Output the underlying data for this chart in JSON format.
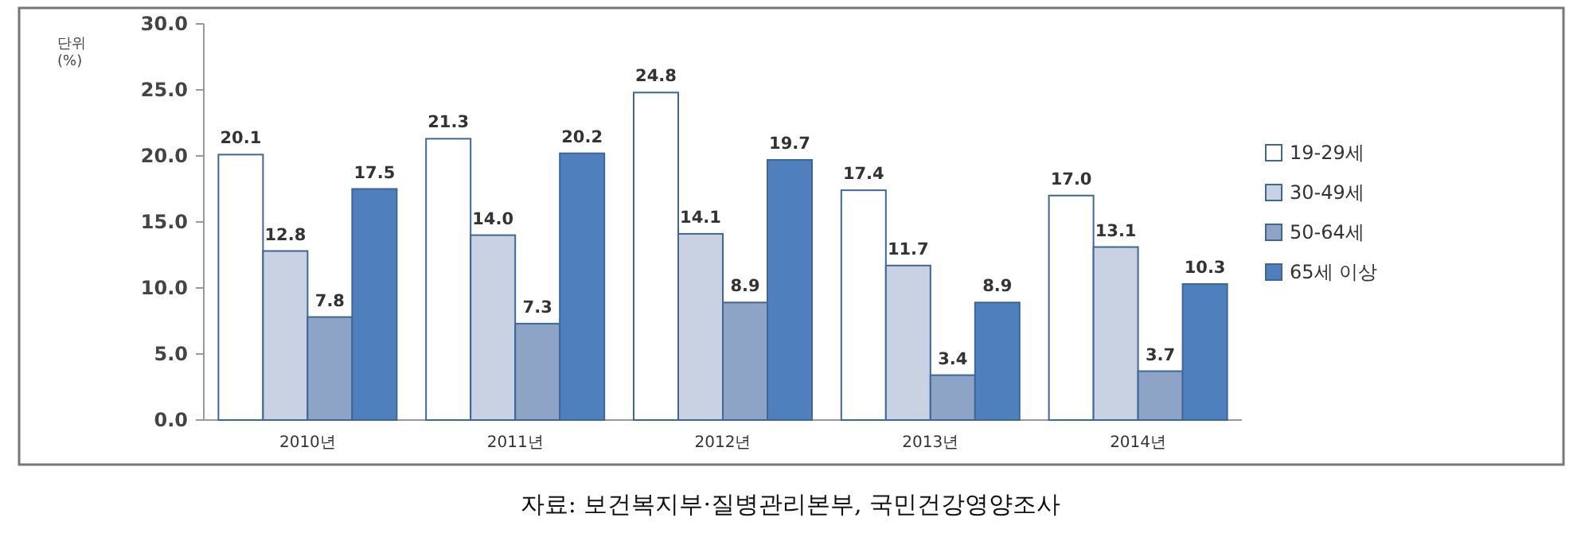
{
  "chart_data": {
    "type": "bar",
    "ylabel": "단위 (%)",
    "categories": [
      "2010년",
      "2011년",
      "2012년",
      "2013년",
      "2014년"
    ],
    "series": [
      {
        "name": "19-29세",
        "color": "#ffffff",
        "values": [
          20.1,
          21.3,
          24.8,
          17.4,
          17.0
        ],
        "value_labels": [
          "20.1",
          "21.3",
          "24.8",
          "17.4",
          "17.0"
        ]
      },
      {
        "name": "30-49세",
        "color": "#c8d2e2",
        "values": [
          12.8,
          14.0,
          14.1,
          11.7,
          13.1
        ],
        "value_labels": [
          "12.8",
          "14.0",
          "14.1",
          "11.7",
          "13.1"
        ]
      },
      {
        "name": "50-64세",
        "color": "#8ea4c6",
        "values": [
          7.8,
          7.3,
          8.9,
          3.4,
          3.7
        ],
        "value_labels": [
          "7.8",
          "7.3",
          "8.9",
          "3.4",
          "3.7"
        ]
      },
      {
        "name": "65세 이상",
        "color": "#4f7fbc",
        "values": [
          17.5,
          20.2,
          19.7,
          8.9,
          10.3
        ],
        "value_labels": [
          "17.5",
          "20.2",
          "19.7",
          "8.9",
          "10.3"
        ]
      }
    ],
    "ylim": [
      0,
      30
    ],
    "yticks": [
      {
        "value": 0,
        "label": "0.0"
      },
      {
        "value": 5,
        "label": "5.0"
      },
      {
        "value": 10,
        "label": "10.0"
      },
      {
        "value": 15,
        "label": "15.0"
      },
      {
        "value": 20,
        "label": "20.0"
      },
      {
        "value": 25,
        "label": "25.0"
      },
      {
        "value": 30,
        "label": "30.0"
      }
    ],
    "legend": "right",
    "annotations": [
      "자료: 보건복지부·질병관리본부, 국민건강영양조사"
    ]
  }
}
